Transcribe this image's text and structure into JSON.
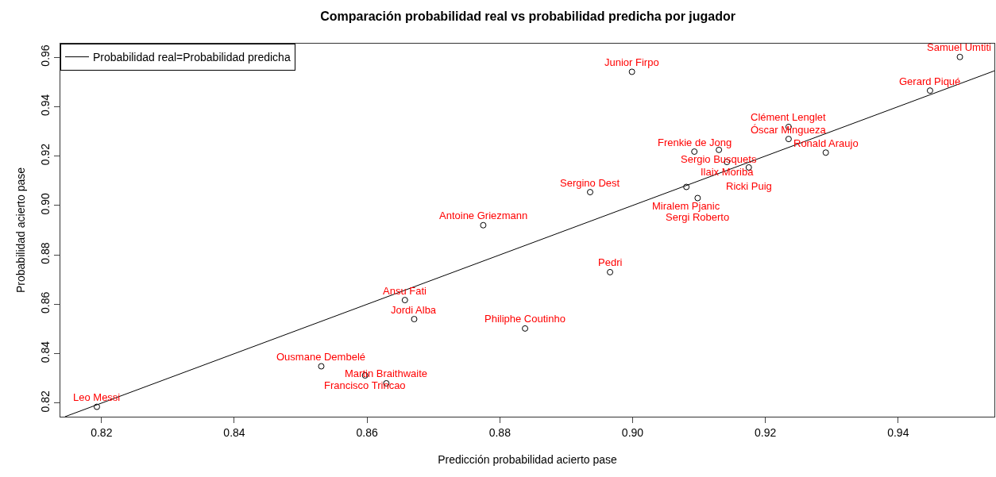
{
  "chart_data": {
    "type": "scatter",
    "title": "Comparación probabilidad real vs probabilidad predicha por jugador",
    "xlabel": "Predicción probabilidad acierto pase",
    "ylabel": "Probabilidad acierto pase",
    "xlim": [
      0.8138,
      0.9545
    ],
    "ylim": [
      0.8145,
      0.9655
    ],
    "xticks": [
      {
        "value": 0.82,
        "label": "0.82"
      },
      {
        "value": 0.84,
        "label": "0.84"
      },
      {
        "value": 0.86,
        "label": "0.86"
      },
      {
        "value": 0.88,
        "label": "0.88"
      },
      {
        "value": 0.9,
        "label": "0.90"
      },
      {
        "value": 0.92,
        "label": "0.92"
      },
      {
        "value": 0.94,
        "label": "0.94"
      }
    ],
    "yticks": [
      {
        "value": 0.82,
        "label": "0.82"
      },
      {
        "value": 0.84,
        "label": "0.84"
      },
      {
        "value": 0.86,
        "label": "0.86"
      },
      {
        "value": 0.88,
        "label": "0.88"
      },
      {
        "value": 0.9,
        "label": "0.90"
      },
      {
        "value": 0.92,
        "label": "0.92"
      },
      {
        "value": 0.94,
        "label": "0.94"
      },
      {
        "value": 0.96,
        "label": "0.96"
      }
    ],
    "grid": false,
    "legend": "top left",
    "series": [
      {
        "color": "#000000",
        "marker": "circle",
        "x": [
          0.8193,
          0.8531,
          0.8597,
          0.8629,
          0.8657,
          0.8671,
          0.8838,
          0.8966,
          0.8775,
          0.8936,
          0.8999,
          0.9093,
          0.913,
          0.9142,
          0.9175,
          0.9081,
          0.9098,
          0.9235,
          0.9235,
          0.9291,
          0.9448,
          0.9493
        ],
        "values": [
          0.8185,
          0.8349,
          0.8312,
          0.828,
          0.8617,
          0.854,
          0.8502,
          0.873,
          0.892,
          0.9054,
          0.9541,
          0.9218,
          0.9225,
          0.9176,
          0.9154,
          0.9075,
          0.903,
          0.9318,
          0.9269,
          0.9214,
          0.9465,
          0.9601
        ]
      },
      {
        "type": "line",
        "name": "Probabilidad real=Probabilidad predicha",
        "color": "#000000",
        "x": [
          0.8145,
          0.9545
        ],
        "values": [
          0.8145,
          0.9545
        ]
      }
    ],
    "annotations": [
      {
        "text": "Leo Messi",
        "x": 0.8193,
        "y": 0.8185
      },
      {
        "text": "Ousmane Dembelé",
        "x": 0.8531,
        "y": 0.8349
      },
      {
        "text": "Francisco Trincao",
        "x": 0.8597,
        "y": 0.8312
      },
      {
        "text": "Martin Braithwaite",
        "x": 0.8629,
        "y": 0.828
      },
      {
        "text": "Ansu Fati",
        "x": 0.8657,
        "y": 0.8617
      },
      {
        "text": "Jordi Alba",
        "x": 0.8671,
        "y": 0.854
      },
      {
        "text": "Philiphe Coutinho",
        "x": 0.8838,
        "y": 0.8502
      },
      {
        "text": "Pedri",
        "x": 0.8966,
        "y": 0.873
      },
      {
        "text": "Antoine Griezmann",
        "x": 0.8775,
        "y": 0.892
      },
      {
        "text": "Sergino Dest",
        "x": 0.8936,
        "y": 0.9054
      },
      {
        "text": "Junior Firpo",
        "x": 0.8999,
        "y": 0.9541
      },
      {
        "text": "Frenkie de Jong",
        "x": 0.9093,
        "y": 0.9218
      },
      {
        "text": "Sergio Busquets",
        "x": 0.913,
        "y": 0.9225
      },
      {
        "text": "Ilaix Moriba",
        "x": 0.9142,
        "y": 0.9176
      },
      {
        "text": "Ricki Puig",
        "x": 0.9175,
        "y": 0.9154
      },
      {
        "text": "Miralem Pjanic",
        "x": 0.9081,
        "y": 0.9075
      },
      {
        "text": "Sergi Roberto",
        "x": 0.9098,
        "y": 0.903
      },
      {
        "text": "Clément Lenglet",
        "x": 0.9235,
        "y": 0.9318
      },
      {
        "text": "Óscar Mingueza",
        "x": 0.9235,
        "y": 0.9269
      },
      {
        "text": "Ronald Araujo",
        "x": 0.9291,
        "y": 0.9214
      },
      {
        "text": "Gerard Piqué",
        "x": 0.9448,
        "y": 0.9465
      },
      {
        "text": "Samuel Umtiti",
        "x": 0.9493,
        "y": 0.9601
      }
    ]
  }
}
